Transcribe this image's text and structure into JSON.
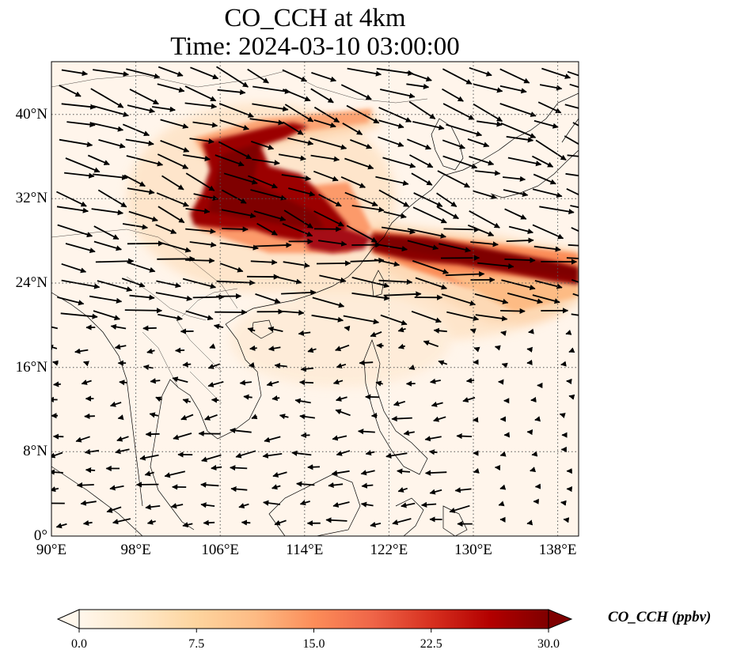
{
  "title": {
    "line1": "CO_CCH at 4km",
    "line2": "Time: 2024-03-10 03:00:00"
  },
  "map": {
    "projection": "PlateCarree",
    "lon_range": [
      90,
      140
    ],
    "lat_range": [
      0,
      45
    ],
    "x_ticks": [
      "90°E",
      "98°E",
      "106°E",
      "114°E",
      "122°E",
      "130°E",
      "138°E"
    ],
    "y_ticks": [
      "0°",
      "8°N",
      "16°N",
      "24°N",
      "32°N",
      "40°N"
    ],
    "gridlines": "dotted",
    "features": [
      "coastlines",
      "country-borders",
      "wind-vectors",
      "CO-concentration-field"
    ],
    "plume_description_colors": {
      "low": "#fff5eb",
      "high": "#7f0000"
    }
  },
  "colorbar": {
    "label": "CO_CCH (ppbv)",
    "ticks": [
      "0.0",
      "7.5",
      "15.0",
      "22.5",
      "30.0"
    ],
    "range": [
      0,
      30
    ],
    "extend": "both",
    "colormap": "OrRd",
    "colors": [
      "#fff7ec",
      "#fee8c8",
      "#fdd49e",
      "#fdbb84",
      "#fc8d59",
      "#ef6548",
      "#d7301f",
      "#b30000",
      "#7f0000"
    ]
  }
}
